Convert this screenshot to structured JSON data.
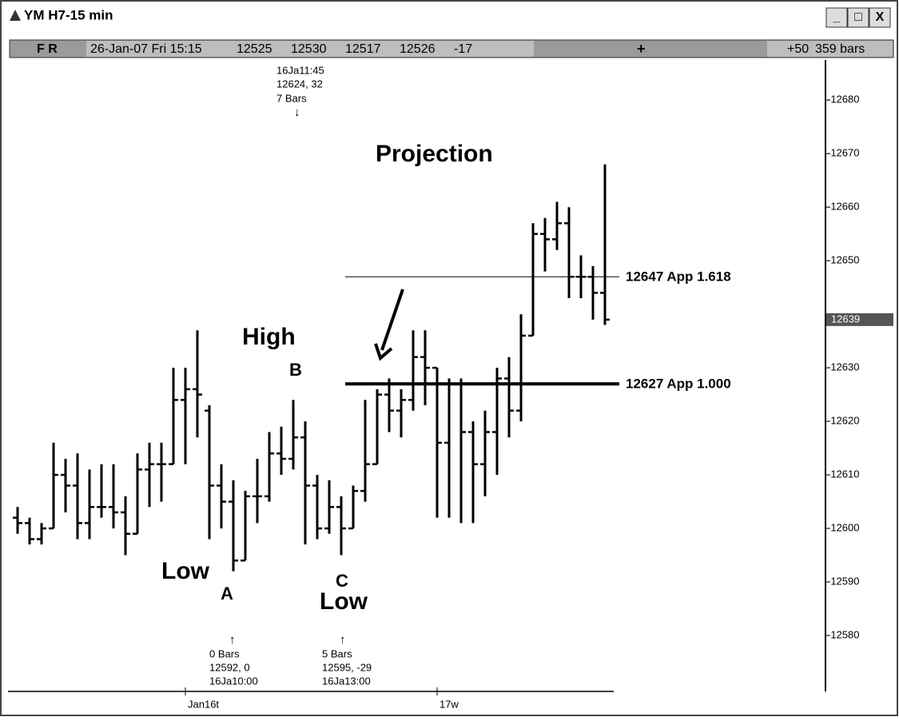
{
  "window": {
    "title": "YM H7-15 min",
    "buttons": [
      "_",
      "□",
      "X"
    ]
  },
  "header": {
    "flags": "F R",
    "datetime": "26-Jan-07 Fri 15:15",
    "fields": [
      "12525",
      "12530",
      "12517",
      "12526",
      "-17"
    ],
    "plus": "+",
    "zoom": "+50",
    "bars": "359 bars"
  },
  "chart_data": {
    "type": "ohlc",
    "categories": [
      null,
      null,
      null,
      null,
      null,
      null,
      null,
      null,
      null,
      null,
      null,
      null,
      null,
      null,
      "Jan16t",
      null,
      null,
      null,
      null,
      null,
      null,
      null,
      null,
      null,
      null,
      null,
      null,
      null,
      null,
      null,
      null,
      null,
      null,
      null,
      null,
      "17w",
      null,
      null,
      null,
      null,
      null,
      null,
      null,
      null,
      null,
      null,
      null,
      null,
      null,
      null
    ],
    "ohlc": [
      [
        12602,
        12604,
        12599,
        12601
      ],
      [
        12601,
        12602,
        12597,
        12598
      ],
      [
        12598,
        12601,
        12597,
        12600
      ],
      [
        12600,
        12616,
        12600,
        12610
      ],
      [
        12610,
        12613,
        12603,
        12608
      ],
      [
        12608,
        12614,
        12598,
        12601
      ],
      [
        12601,
        12611,
        12598,
        12604
      ],
      [
        12604,
        12612,
        12602,
        12604
      ],
      [
        12604,
        12612,
        12600,
        12603
      ],
      [
        12603,
        12606,
        12595,
        12599
      ],
      [
        12599,
        12614,
        12599,
        12611
      ],
      [
        12611,
        12616,
        12604,
        12612
      ],
      [
        12612,
        12616,
        12605,
        12612
      ],
      [
        12612,
        12630,
        12612,
        12624
      ],
      [
        12624,
        12630,
        12612,
        12626
      ],
      [
        12626,
        12637,
        12617,
        12625
      ],
      [
        12622,
        12623,
        12598,
        12608
      ],
      [
        12608,
        12612,
        12600,
        12605
      ],
      [
        12605,
        12609,
        12592,
        12594
      ],
      [
        12594,
        12607,
        12594,
        12606
      ],
      [
        12606,
        12613,
        12601,
        12606
      ],
      [
        12606,
        12618,
        12605,
        12614
      ],
      [
        12614,
        12619,
        12610,
        12613
      ],
      [
        12613,
        12624,
        12611,
        12617
      ],
      [
        12617,
        12620,
        12597,
        12608
      ],
      [
        12608,
        12610,
        12598,
        12600
      ],
      [
        12600,
        12609,
        12599,
        12604
      ],
      [
        12604,
        12606,
        12595,
        12600
      ],
      [
        12600,
        12608,
        12600,
        12607
      ],
      [
        12607,
        12624,
        12605,
        12612
      ],
      [
        12612,
        12626,
        12612,
        12625
      ],
      [
        12625,
        12628,
        12618,
        12622
      ],
      [
        12622,
        12626,
        12617,
        12624
      ],
      [
        12624,
        12637,
        12622,
        12632
      ],
      [
        12632,
        12637,
        12623,
        12630
      ],
      [
        12630,
        12630,
        12602,
        12616
      ],
      [
        12616,
        12628,
        12602,
        12627
      ],
      [
        12627,
        12628,
        12601,
        12618
      ],
      [
        12618,
        12620,
        12601,
        12612
      ],
      [
        12612,
        12622,
        12606,
        12618
      ],
      [
        12618,
        12630,
        12610,
        12628
      ],
      [
        12628,
        12632,
        12617,
        12622
      ],
      [
        12622,
        12640,
        12620,
        12636
      ],
      [
        12636,
        12657,
        12636,
        12655
      ],
      [
        12655,
        12658,
        12648,
        12654
      ],
      [
        12654,
        12661,
        12652,
        12657
      ],
      [
        12657,
        12660,
        12643,
        12647
      ],
      [
        12647,
        12651,
        12643,
        12647
      ],
      [
        12647,
        12649,
        12639,
        12644
      ],
      [
        12644,
        12668,
        12638,
        12639
      ]
    ],
    "ylim": [
      12570,
      12687.5
    ],
    "yticks": [
      12580,
      12590,
      12600,
      12610,
      12620,
      12630,
      12640,
      12650,
      12660,
      12670,
      12680
    ],
    "ytick_labels": [
      "-12580",
      "-12590",
      "-12600",
      "-12610",
      "-12620",
      "-12630",
      "",
      "-12650",
      "-12660",
      "-12670",
      "-12680"
    ],
    "last_price": 12639,
    "levels": [
      {
        "value": 12647,
        "label": "12647 App 1.618",
        "weight": "thin"
      },
      {
        "value": 12627,
        "label": "12627 App 1.000",
        "weight": "thick"
      }
    ],
    "annotations": [
      "16Ja11:45",
      "12624, 32",
      "7 Bars",
      "↓",
      "Projection",
      "High",
      "B",
      "Low",
      "A",
      "C",
      "Low",
      "↑",
      "0 Bars",
      "12592, 0",
      "16Ja10:00",
      "↑",
      "5 Bars",
      "12595, -29",
      "16Ja13:00"
    ],
    "color": "#000000"
  }
}
